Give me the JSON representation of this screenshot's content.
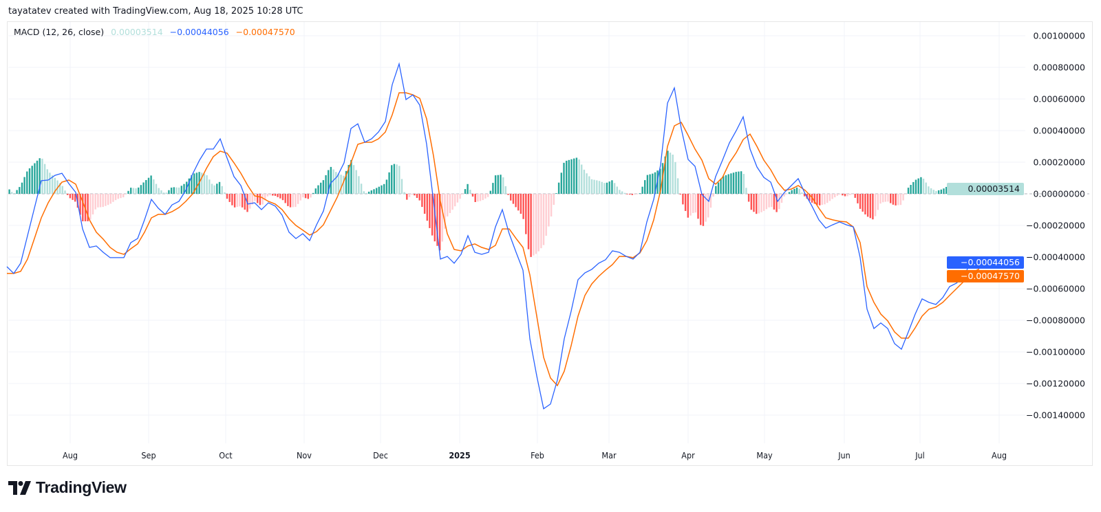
{
  "attribution": "tayatatev created with TradingView.com, Aug 18, 2025 10:28 UTC",
  "brand": "TradingView",
  "legend": {
    "indicator": "MACD (12, 26, close)",
    "histogram_value": "0.00003514",
    "macd_value": "−0.00044056",
    "signal_value": "−0.00047570"
  },
  "price_labels": {
    "histogram": "0.00003514",
    "macd": "−0.00044056",
    "signal": "−0.00047570"
  },
  "colors": {
    "macd": "#2962ff",
    "signal": "#ff6d00",
    "hist_pos_growing": "#26a69a",
    "hist_pos_falling": "#b2dfdb",
    "hist_neg_falling": "#ff5252",
    "hist_neg_rising": "#ffcdd2"
  },
  "chart_data": {
    "type": "line",
    "title": "MACD (12, 26, close)",
    "x_range": [
      "Jul 2024",
      "Aug 2025"
    ],
    "x_ticks": [
      "Aug",
      "Sep",
      "Oct",
      "Nov",
      "Dec",
      "2025",
      "Feb",
      "Mar",
      "Apr",
      "May",
      "Jun",
      "Jul",
      "Aug"
    ],
    "y_ticks": [
      "0.00100000",
      "0.00080000",
      "0.00060000",
      "0.00040000",
      "0.00020000",
      "0.00000000",
      "−0.00020000",
      "−0.00040000",
      "−0.00060000",
      "−0.00080000",
      "−0.00100000",
      "−0.00120000",
      "−0.00140000"
    ],
    "ylim": [
      -0.0016,
      0.00108
    ],
    "grid": true,
    "legend_placement": "top-left",
    "histogram": "MACD minus signal",
    "series": [
      {
        "name": "MACD",
        "values": [
          -0.000461,
          -0.000504,
          -0.000439,
          -0.000265,
          -9.1e-05,
          8.3e-05,
          8.7e-05,
          0.000117,
          0.00013,
          6.5e-05,
          9e-06,
          -0.000222,
          -0.000339,
          -0.00033,
          -0.00037,
          -0.000404,
          -0.000404,
          -0.000404,
          -0.000309,
          -0.000283,
          -0.000165,
          -3.5e-05,
          -9.1e-05,
          -0.00013,
          -7e-05,
          -4.8e-05,
          2.2e-05,
          0.000126,
          0.000213,
          0.000283,
          0.000283,
          0.000348,
          0.000226,
          0.000109,
          5.2e-05,
          -6.5e-05,
          -5.7e-05,
          -0.0001,
          -5.7e-05,
          -7.8e-05,
          -0.000135,
          -0.000243,
          -0.000283,
          -0.000252,
          -0.000296,
          -0.000196,
          -0.000109,
          6.5e-05,
          0.000109,
          0.000196,
          0.000413,
          0.000443,
          0.000326,
          0.000348,
          0.000391,
          0.000457,
          0.000691,
          0.000822,
          0.000596,
          0.000626,
          0.000561,
          0.000313,
          -4.8e-05,
          -0.000413,
          -0.000396,
          -0.000439,
          -0.000383,
          -0.000265,
          -0.00037,
          -0.000383,
          -0.00037,
          -0.000209,
          -0.0001,
          -0.000252,
          -0.00037,
          -0.000483,
          -0.000917,
          -0.001152,
          -0.00136,
          -0.00133,
          -0.001178,
          -0.000917,
          -0.000743,
          -0.000543,
          -0.0005,
          -0.000478,
          -0.000439,
          -0.000417,
          -0.000361,
          -0.00037,
          -0.000396,
          -0.000413,
          -0.00037,
          -0.000178,
          -3.5e-05,
          0.000183,
          0.000574,
          0.00067,
          0.000413,
          0.000217,
          0.000174,
          -4e-06,
          -4.8e-05,
          0.000109,
          0.000213,
          0.000322,
          0.0004,
          0.000487,
          0.000283,
          0.00017,
          0.000104,
          7.4e-05,
          -4.8e-05,
          9e-06,
          5.2e-05,
          9.6e-05,
          0.0,
          -7.8e-05,
          -0.000165,
          -0.000217,
          -0.000196,
          -0.000178,
          -0.000196,
          -0.000209,
          -0.000404,
          -0.00073,
          -0.000852,
          -0.000817,
          -0.000852,
          -0.000948,
          -0.000983,
          -0.000874,
          -0.000761,
          -0.000665,
          -0.000687,
          -0.0007,
          -0.000657,
          -0.000587,
          -0.000565,
          -0.000526,
          -0.000439,
          -0.00044056
        ]
      },
      {
        "name": "Signal",
        "values": [
          -0.000504,
          -0.000504,
          -0.000491,
          -0.000413,
          -0.000283,
          -0.000152,
          -5.7e-05,
          1.7e-05,
          7.4e-05,
          8.7e-05,
          6.1e-05,
          -4.8e-05,
          -0.000165,
          -0.000243,
          -0.000287,
          -0.000339,
          -0.00037,
          -0.000383,
          -0.000348,
          -0.000317,
          -0.000243,
          -0.000152,
          -0.00013,
          -0.00013,
          -0.000113,
          -8.7e-05,
          -4.8e-05,
          0.0,
          7.4e-05,
          0.000161,
          0.000235,
          0.00027,
          0.000257,
          0.000196,
          0.00013,
          5.2e-05,
          -1.3e-05,
          -2.2e-05,
          -4.8e-05,
          -6.5e-05,
          -0.0001,
          -0.000157,
          -0.0002,
          -0.00023,
          -0.000261,
          -0.000239,
          -0.000196,
          -0.000109,
          -2.2e-05,
          8.3e-05,
          0.000196,
          0.000313,
          0.000326,
          0.000326,
          0.000348,
          0.000391,
          0.0005,
          0.000639,
          0.000639,
          0.000626,
          0.000604,
          0.000474,
          0.000239,
          -4.8e-05,
          -0.000252,
          -0.000352,
          -0.000361,
          -0.00033,
          -0.000317,
          -0.000339,
          -0.000352,
          -0.000326,
          -0.000222,
          -0.000222,
          -0.000283,
          -0.000339,
          -0.000513,
          -0.000774,
          -0.001035,
          -0.001165,
          -0.001213,
          -0.001122,
          -0.000961,
          -0.000774,
          -0.000643,
          -0.00057,
          -0.000522,
          -0.000483,
          -0.000448,
          -0.000396,
          -0.000396,
          -0.000404,
          -0.000374,
          -0.000296,
          -0.000165,
          2.2e-05,
          0.0003,
          0.00043,
          0.000452,
          0.00037,
          0.000283,
          0.000213,
          9.6e-05,
          6.1e-05,
          0.000104,
          0.000196,
          0.000261,
          0.000343,
          0.000378,
          0.0003,
          0.000213,
          0.000152,
          7.4e-05,
          2.2e-05,
          3e-05,
          5.2e-05,
          2.2e-05,
          -2.2e-05,
          -9.1e-05,
          -0.000152,
          -0.000165,
          -0.000174,
          -0.000178,
          -0.000209,
          -0.000309,
          -0.000587,
          -0.000687,
          -0.000761,
          -0.000804,
          -0.000874,
          -0.000913,
          -0.000913,
          -0.000848,
          -0.000774,
          -0.00073,
          -0.000717,
          -0.000687,
          -0.000643,
          -0.0006,
          -0.000557,
          -0.000504,
          -0.0004757
        ]
      }
    ]
  }
}
